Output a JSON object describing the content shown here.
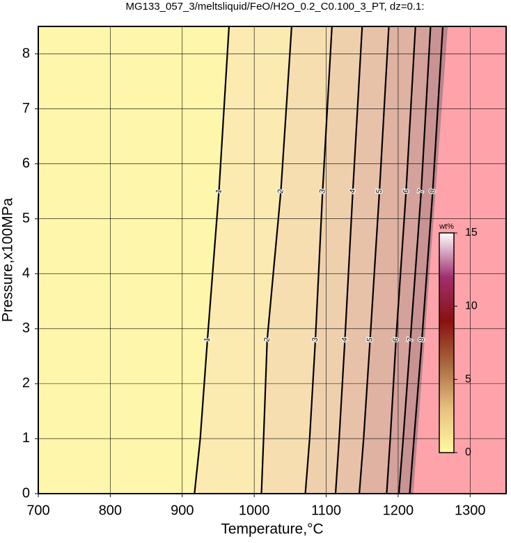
{
  "chart_data": {
    "type": "contour",
    "title": "MG133_057_3/meltsliquid/FeO/H2O_0.2_C0.100_3_PT, dz=0.1:",
    "x_label": "Temperature,°C",
    "y_label": "Pressure,x100MPa",
    "xlim": [
      700,
      1350
    ],
    "xticks": [
      700,
      800,
      900,
      1000,
      1100,
      1200,
      1300
    ],
    "ylim": [
      0,
      8.5
    ],
    "yticks": [
      0,
      1,
      2,
      3,
      4,
      5,
      6,
      7,
      8
    ],
    "grid": true,
    "contours": [
      {
        "level": 1,
        "x": [
          917,
          925,
          935,
          951,
          965
        ],
        "y": [
          0,
          1,
          2.8,
          5.5,
          8.5
        ]
      },
      {
        "level": 2,
        "x": [
          1010,
          1013,
          1018,
          1037,
          1052
        ],
        "y": [
          0,
          1,
          2.8,
          5.5,
          8.5
        ]
      },
      {
        "level": 3,
        "x": [
          1071,
          1077,
          1085,
          1095,
          1108
        ],
        "y": [
          0,
          1,
          2.8,
          5.5,
          8.5
        ]
      },
      {
        "level": 4,
        "x": [
          1113,
          1118,
          1126,
          1137,
          1150
        ],
        "y": [
          0,
          1,
          2.8,
          5.5,
          8.5
        ]
      },
      {
        "level": 5,
        "x": [
          1146,
          1152,
          1161,
          1174,
          1187
        ],
        "y": [
          0,
          1,
          2.8,
          5.5,
          8.5
        ]
      },
      {
        "level": 6,
        "x": [
          1184,
          1189,
          1197,
          1211,
          1224
        ],
        "y": [
          0,
          1,
          2.8,
          5.5,
          8.5
        ]
      },
      {
        "level": 7,
        "x": [
          1201,
          1207,
          1217,
          1232,
          1245
        ],
        "y": [
          0,
          1,
          2.8,
          5.5,
          8.5
        ]
      },
      {
        "level": 8,
        "x": [
          1216,
          1222,
          1233,
          1248,
          1262
        ],
        "y": [
          0,
          1,
          2.8,
          5.5,
          8.5
        ]
      }
    ],
    "band_colors": [
      "#fef6aa",
      "#fbebb0",
      "#f6deb0",
      "#efd0ad",
      "#e8c2a8",
      "#dfb2a2",
      "#d4a29b",
      "#c99393",
      "#bb858c"
    ],
    "outside_region": {
      "color": "#ffa3aa",
      "x": [
        1221,
        1269
      ],
      "y": [
        0,
        8.5
      ]
    },
    "colorbar": {
      "label": "wt%",
      "lim": [
        0,
        15
      ],
      "ticks": [
        0,
        5,
        10,
        15
      ],
      "colors": [
        "#fffaa0",
        "#e8c080",
        "#a86a40",
        "#8a1010",
        "#a03070",
        "#ffffff"
      ]
    }
  }
}
